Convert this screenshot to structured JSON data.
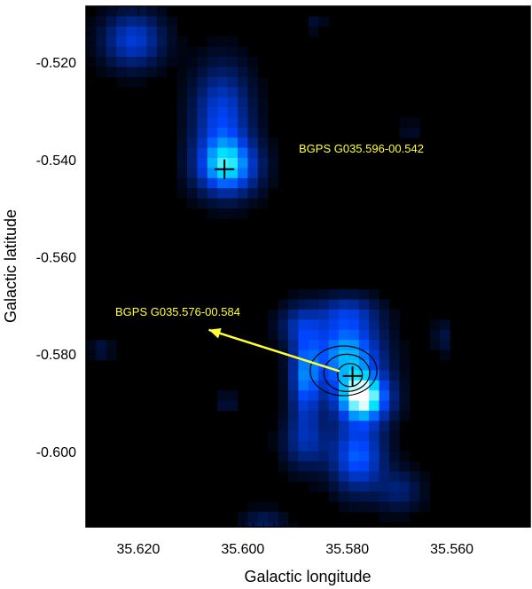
{
  "chart_data": {
    "type": "heatmap",
    "title": "",
    "xlabel": "Galactic longitude",
    "ylabel": "Galactic latitude",
    "xlim": [
      35.63,
      35.545
    ],
    "ylim": [
      -0.6155,
      -0.5085
    ],
    "x_reversed": true,
    "grid": false,
    "colormap": "black-blue-white",
    "x_ticks": [
      35.62,
      35.6,
      35.58,
      35.56
    ],
    "x_tick_labels": [
      "35.620",
      "35.600",
      "35.580",
      "35.560"
    ],
    "y_ticks": [
      -0.52,
      -0.54,
      -0.56,
      -0.58,
      -0.6
    ],
    "y_tick_labels": [
      "-0.520",
      "-0.540",
      "-0.560",
      "-0.580",
      "-0.600"
    ],
    "emission_blobs": [
      {
        "l": 35.621,
        "b": -0.5155,
        "sigma_l": 0.004,
        "sigma_b": 0.004,
        "amp": 0.42
      },
      {
        "l": 35.604,
        "b": -0.531,
        "sigma_l": 0.0038,
        "sigma_b": 0.007,
        "amp": 0.45
      },
      {
        "l": 35.603,
        "b": -0.5415,
        "sigma_l": 0.004,
        "sigma_b": 0.004,
        "amp": 0.72
      },
      {
        "l": 35.589,
        "b": -0.574,
        "sigma_l": 0.003,
        "sigma_b": 0.003,
        "amp": 0.28
      },
      {
        "l": 35.58,
        "b": -0.58,
        "sigma_l": 0.0045,
        "sigma_b": 0.005,
        "amp": 0.7
      },
      {
        "l": 35.577,
        "b": -0.589,
        "sigma_l": 0.0035,
        "sigma_b": 0.0035,
        "amp": 0.95
      },
      {
        "l": 35.588,
        "b": -0.585,
        "sigma_l": 0.002,
        "sigma_b": 0.006,
        "amp": 0.55
      },
      {
        "l": 35.578,
        "b": -0.601,
        "sigma_l": 0.0035,
        "sigma_b": 0.005,
        "amp": 0.55
      },
      {
        "l": 35.57,
        "b": -0.608,
        "sigma_l": 0.003,
        "sigma_b": 0.003,
        "amp": 0.22
      },
      {
        "l": 35.588,
        "b": -0.598,
        "sigma_l": 0.003,
        "sigma_b": 0.004,
        "amp": 0.3
      },
      {
        "l": 35.58,
        "b": -0.5715,
        "sigma_l": 0.004,
        "sigma_b": 0.0025,
        "amp": 0.28
      },
      {
        "l": 35.596,
        "b": -0.615,
        "sigma_l": 0.003,
        "sigma_b": 0.002,
        "amp": 0.2
      },
      {
        "l": 35.562,
        "b": -0.5765,
        "sigma_l": 0.001,
        "sigma_b": 0.0025,
        "amp": 0.16
      },
      {
        "l": 35.627,
        "b": -0.579,
        "sigma_l": 0.0015,
        "sigma_b": 0.0015,
        "amp": 0.14
      },
      {
        "l": 35.603,
        "b": -0.59,
        "sigma_l": 0.0015,
        "sigma_b": 0.0015,
        "amp": 0.12
      },
      {
        "l": 35.568,
        "b": -0.534,
        "sigma_l": 0.0012,
        "sigma_b": 0.0015,
        "amp": 0.1
      },
      {
        "l": 35.586,
        "b": -0.512,
        "sigma_l": 0.0012,
        "sigma_b": 0.0015,
        "amp": 0.1
      }
    ],
    "sources": [
      {
        "label": "BGPS G035.596-00.542",
        "marker_l": 35.6035,
        "marker_b": -0.542
      },
      {
        "label": "BGPS G035.576-00.584",
        "marker_l": 35.579,
        "marker_b": -0.5845
      }
    ],
    "annotation_arrow": {
      "from_l": 35.5815,
      "from_b": -0.5835,
      "to_l": 35.6065,
      "to_b": -0.575
    },
    "contours": {
      "center_l": 35.5795,
      "center_b": -0.5843,
      "levels": [
        1,
        2,
        3
      ]
    },
    "colors": {
      "label": "#ffff33",
      "arrow": "#ffff33",
      "marker": "#000000",
      "contour": "#000000",
      "background": "#000000"
    }
  }
}
